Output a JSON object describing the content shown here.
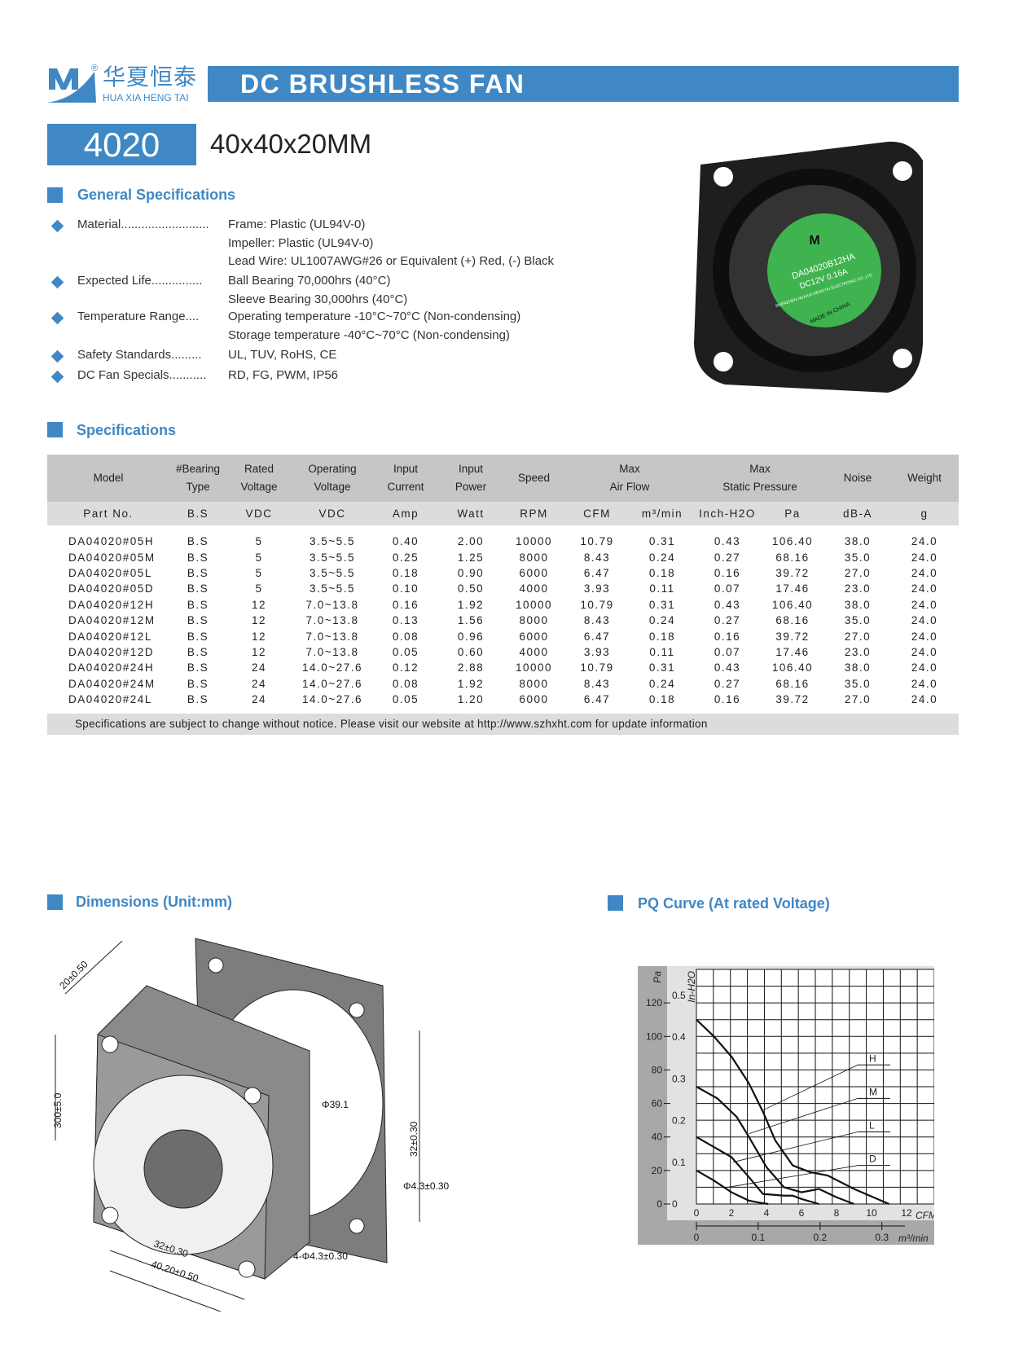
{
  "brand": {
    "name_cn": "华夏恒泰",
    "name_en": "HUA XIA HENG TAI",
    "registered": "®",
    "logo_letter": "M"
  },
  "banner": {
    "title": "DC BRUSHLESS FAN"
  },
  "model": {
    "code": "4020",
    "size": "40x40x20MM"
  },
  "general": {
    "title": "General Specifications",
    "items": [
      {
        "label": "Material..........................",
        "lines": [
          "Frame: Plastic (UL94V-0)",
          "Impeller: Plastic (UL94V-0)",
          "Lead Wire: UL1007AWG#26 or Equivalent (+) Red, (-) Black"
        ]
      },
      {
        "label": "Expected Life...............",
        "lines": [
          "Ball Bearing 70,000hrs (40°C)",
          "Sleeve Bearing 30,000hrs (40°C)"
        ]
      },
      {
        "label": "Temperature Range....",
        "lines": [
          "Operating temperature -10°C~70°C (Non-condensing)",
          "Storage temperature -40°C~70°C (Non-condensing)"
        ]
      },
      {
        "label": "Safety Standards.........",
        "lines": [
          "UL, TUV, RoHS, CE"
        ]
      },
      {
        "label": "DC Fan Specials...........",
        "lines": [
          "RD, FG, PWM, IP56"
        ]
      }
    ]
  },
  "fan_label": {
    "logo": "M",
    "model": "DA04020B12HA",
    "rating": "DC12V  0.16A",
    "maker": "SHENZHEN HUAXIA HENGTAI ELECTRONIC CO.,LTD",
    "origin": "MADE IN CHINA"
  },
  "specs": {
    "title": "Specifications",
    "headers": [
      "Model",
      "#Bearing Type",
      "Rated Voltage",
      "Operating Voltage",
      "Input Current",
      "Input Power",
      "Speed",
      "Max Air Flow",
      "Max Static Pressure",
      "Noise",
      "Weight"
    ],
    "units": [
      "Part No.",
      "B.S",
      "VDC",
      "VDC",
      "Amp",
      "Watt",
      "RPM",
      "CFM",
      "m³/min",
      "Inch-H2O",
      "Pa",
      "dB-A",
      "g"
    ],
    "rows": [
      [
        "DA04020#05H",
        "B.S",
        "5",
        "3.5~5.5",
        "0.40",
        "2.00",
        "10000",
        "10.79",
        "0.31",
        "0.43",
        "106.40",
        "38.0",
        "24.0"
      ],
      [
        "DA04020#05M",
        "B.S",
        "5",
        "3.5~5.5",
        "0.25",
        "1.25",
        "8000",
        "8.43",
        "0.24",
        "0.27",
        "68.16",
        "35.0",
        "24.0"
      ],
      [
        "DA04020#05L",
        "B.S",
        "5",
        "3.5~5.5",
        "0.18",
        "0.90",
        "6000",
        "6.47",
        "0.18",
        "0.16",
        "39.72",
        "27.0",
        "24.0"
      ],
      [
        "DA04020#05D",
        "B.S",
        "5",
        "3.5~5.5",
        "0.10",
        "0.50",
        "4000",
        "3.93",
        "0.11",
        "0.07",
        "17.46",
        "23.0",
        "24.0"
      ],
      [
        "DA04020#12H",
        "B.S",
        "12",
        "7.0~13.8",
        "0.16",
        "1.92",
        "10000",
        "10.79",
        "0.31",
        "0.43",
        "106.40",
        "38.0",
        "24.0"
      ],
      [
        "DA04020#12M",
        "B.S",
        "12",
        "7.0~13.8",
        "0.13",
        "1.56",
        "8000",
        "8.43",
        "0.24",
        "0.27",
        "68.16",
        "35.0",
        "24.0"
      ],
      [
        "DA04020#12L",
        "B.S",
        "12",
        "7.0~13.8",
        "0.08",
        "0.96",
        "6000",
        "6.47",
        "0.18",
        "0.16",
        "39.72",
        "27.0",
        "24.0"
      ],
      [
        "DA04020#12D",
        "B.S",
        "12",
        "7.0~13.8",
        "0.05",
        "0.60",
        "4000",
        "3.93",
        "0.11",
        "0.07",
        "17.46",
        "23.0",
        "24.0"
      ],
      [
        "DA04020#24H",
        "B.S",
        "24",
        "14.0~27.6",
        "0.12",
        "2.88",
        "10000",
        "10.79",
        "0.31",
        "0.43",
        "106.40",
        "38.0",
        "24.0"
      ],
      [
        "DA04020#24M",
        "B.S",
        "24",
        "14.0~27.6",
        "0.08",
        "1.92",
        "8000",
        "8.43",
        "0.24",
        "0.27",
        "68.16",
        "35.0",
        "24.0"
      ],
      [
        "DA04020#24L",
        "B.S",
        "24",
        "14.0~27.6",
        "0.05",
        "1.20",
        "6000",
        "6.47",
        "0.18",
        "0.16",
        "39.72",
        "27.0",
        "24.0"
      ]
    ],
    "note": "Specifications are subject to change without notice. Please visit our website at http://www.szhxht.com for update information"
  },
  "dimensions": {
    "title": "Dimensions (Unit:mm)",
    "labels": [
      "20±0.50",
      "300±5.0",
      "Φ39.1",
      "32±0.30",
      "Φ4.3±0.30",
      "32±0.30",
      "40.20±0.50",
      "4-Φ4.3±0.30"
    ]
  },
  "chart_data": {
    "type": "line",
    "title": "PQ Curve (At rated Voltage)",
    "xlabel": "CFM",
    "xlabel2": "m³/min",
    "ylabel": "Pa",
    "ylabel2": "In-H2O",
    "xlim": [
      0,
      12
    ],
    "ylim": [
      0,
      120
    ],
    "grid": true,
    "xticks": [
      "0",
      "2",
      "4",
      "6",
      "8",
      "10",
      "12"
    ],
    "x2ticks": [
      "0",
      "0.1",
      "0.2",
      "0.3"
    ],
    "yticks": [
      "0",
      "20",
      "40",
      "60",
      "80",
      "100",
      "120"
    ],
    "y2ticks": [
      "0",
      "0.1",
      "0.2",
      "0.3",
      "0.4",
      "0.5"
    ],
    "series": [
      {
        "name": "H",
        "x": [
          0,
          1,
          2,
          3,
          3.8,
          4.5,
          5.5,
          6.5,
          7.5,
          9,
          11
        ],
        "y": [
          110,
          100,
          88,
          72,
          55,
          38,
          23,
          19,
          17,
          9,
          0
        ]
      },
      {
        "name": "M",
        "x": [
          0,
          1.2,
          2.3,
          3,
          4,
          5,
          6,
          7,
          8,
          9
        ],
        "y": [
          70,
          63,
          52,
          40,
          22,
          10,
          7,
          9,
          4,
          0
        ]
      },
      {
        "name": "L",
        "x": [
          0,
          1,
          2,
          3,
          3.8,
          5,
          5.5,
          6,
          7
        ],
        "y": [
          40,
          34,
          28,
          16,
          6,
          5,
          5,
          3,
          0
        ]
      },
      {
        "name": "D",
        "x": [
          0,
          1,
          2,
          3,
          3.5,
          4.1
        ],
        "y": [
          20,
          14,
          7,
          2,
          1,
          0
        ]
      }
    ]
  }
}
